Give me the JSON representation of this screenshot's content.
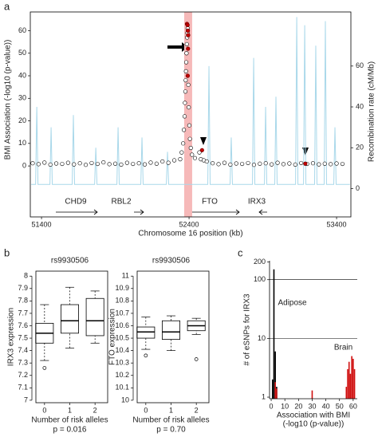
{
  "chart_data": [
    {
      "type": "locus",
      "panel": "a",
      "ylabel": "BMI Association (-log10 (p-value))",
      "y2label": "Recombination rate (cM/Mb)",
      "xlabel": "Chromosome 16 position (kb)",
      "xlim": [
        51324,
        53497
      ],
      "xticks": [
        51400,
        52400,
        53400
      ],
      "ylim": [
        -22.6,
        68.3
      ],
      "yticks": [
        0,
        10,
        20,
        30,
        40,
        50,
        60
      ],
      "y2lim": [
        -13.9,
        86.5
      ],
      "y2ticks": [
        0,
        20,
        40,
        60
      ],
      "highlight": [
        52367,
        52421
      ],
      "highlight_color": "#f6b9b9",
      "genes": [
        "CHD9",
        "RBL2",
        "FTO",
        "IRX3"
      ],
      "series": [
        {
          "color": "#ffffff",
          "x": [
            51340,
            51380,
            51420,
            51460,
            51500,
            51540,
            51580,
            51620,
            51660,
            51700,
            51740,
            51780,
            51820,
            51860,
            51900,
            51940,
            51980,
            52020,
            52060,
            52100,
            52140,
            52180,
            52220,
            52260,
            52300,
            52340,
            52350,
            52360,
            52365,
            52370,
            52372,
            52375,
            52377,
            52379,
            52381,
            52383,
            52385,
            52387,
            52389,
            52391,
            52395,
            52398,
            52402,
            52406,
            52412,
            52420,
            52440,
            52470,
            52480,
            52500,
            52520,
            52560,
            52600,
            52640,
            52680,
            52720,
            52760,
            52800,
            52840,
            52880,
            52920,
            52960,
            53000,
            53040,
            53080,
            53120,
            53160,
            53200,
            53240,
            53280,
            53320,
            53360,
            53400,
            53440
          ],
          "values": [
            1.2,
            0.8,
            1.5,
            0.6,
            1.1,
            0.9,
            1.4,
            0.7,
            1.2,
            0.5,
            1.3,
            0.9,
            1.6,
            0.8,
            1.0,
            0.6,
            1.4,
            0.9,
            1.2,
            0.7,
            1.5,
            1.0,
            2.0,
            1.4,
            2.5,
            3,
            6,
            10,
            16,
            22,
            28,
            33,
            38,
            42,
            46,
            50,
            54,
            57,
            59,
            61,
            36,
            26,
            18,
            12,
            8,
            5,
            3.5,
            6,
            3,
            2.5,
            2.0,
            1.2,
            0.8,
            1.4,
            0.6,
            1.1,
            0.9,
            1.3,
            0.5,
            1.0,
            1.2,
            0.7,
            1.4,
            0.8,
            1.1,
            0.6,
            1.3,
            0.9,
            1.2,
            0.7,
            1.0,
            0.8,
            1.1,
            0.9
          ]
        },
        {
          "color": "#c00000",
          "x": [
            52386,
            52390,
            52392,
            52394,
            52393,
            52391,
            52488,
            53188
          ],
          "values": [
            63,
            62.5,
            60,
            58,
            52,
            40,
            7,
            1
          ]
        },
        {
          "color": "#a9d8ea",
          "axis": "y2",
          "kind": "line",
          "x": [
            51330,
            51360,
            51368,
            51376,
            51457,
            51465,
            51473,
            51608,
            51616,
            51624,
            51760,
            51768,
            51776,
            51911,
            51919,
            51927,
            52073,
            52081,
            52089,
            52246,
            52254,
            52262,
            52527,
            52535,
            52543,
            52678,
            52686,
            52694,
            52830,
            52838,
            52846,
            52911,
            52919,
            52927,
            52981,
            52989,
            52997,
            53122,
            53130,
            53138,
            53176,
            53184,
            53192,
            53251,
            53259,
            53267,
            53316,
            53324,
            53332,
            53381,
            53389,
            53397,
            53490
          ],
          "values": [
            2,
            2,
            40,
            2,
            2,
            30,
            2,
            2,
            36,
            2,
            2,
            20,
            2,
            2,
            30,
            2,
            2,
            25,
            2,
            2,
            18,
            2,
            2,
            60,
            2,
            2,
            25,
            2,
            2,
            64,
            2,
            2,
            40,
            2,
            2,
            45,
            2,
            2,
            84,
            2,
            2,
            80,
            2,
            2,
            70,
            2,
            2,
            82,
            2,
            2,
            30,
            2,
            2
          ]
        }
      ]
    },
    {
      "type": "box",
      "panel": "b",
      "title": "rs9930506",
      "ylabel": "IRX3 expression",
      "xlabel": "Number of risk alleles",
      "note": "p = 0.016",
      "categories": [
        "0",
        "1",
        "2"
      ],
      "ylim": [
        6.98,
        8.04
      ],
      "yticks": [
        7,
        7.1,
        7.2,
        7.3,
        7.4,
        7.5,
        7.6,
        7.7,
        7.8,
        7.9,
        8
      ],
      "boxes": [
        {
          "whisker_low": 7.32,
          "q1": 7.46,
          "median": 7.54,
          "q3": 7.62,
          "whisker_high": 7.77,
          "outliers": [
            7.26
          ]
        },
        {
          "whisker_low": 7.42,
          "q1": 7.54,
          "median": 7.64,
          "q3": 7.77,
          "whisker_high": 7.91,
          "outliers": []
        },
        {
          "whisker_low": 7.46,
          "q1": 7.52,
          "median": 7.64,
          "q3": 7.82,
          "whisker_high": 7.88,
          "outliers": []
        }
      ]
    },
    {
      "type": "box",
      "title": "rs9930506",
      "ylabel": "FTO expression",
      "xlabel": "Number of risk alleles",
      "note": "p = 0.70",
      "categories": [
        "0",
        "1",
        "2"
      ],
      "ylim": [
        9.98,
        11.04
      ],
      "yticks": [
        10,
        10.1,
        10.2,
        10.3,
        10.4,
        10.5,
        10.6,
        10.7,
        10.8,
        10.9,
        11
      ],
      "boxes": [
        {
          "whisker_low": 10.41,
          "q1": 10.5,
          "median": 10.55,
          "q3": 10.59,
          "whisker_high": 10.67,
          "outliers": [
            10.36
          ]
        },
        {
          "whisker_low": 10.4,
          "q1": 10.49,
          "median": 10.55,
          "q3": 10.64,
          "whisker_high": 10.68,
          "outliers": []
        },
        {
          "whisker_low": 10.53,
          "q1": 10.56,
          "median": 10.6,
          "q3": 10.64,
          "whisker_high": 10.66,
          "outliers": [
            10.33
          ]
        }
      ]
    },
    {
      "type": "spikes",
      "panel": "c",
      "ylabel": "# of eSNPs for IRX3",
      "xlabel": [
        "Association with BMI",
        "(-log10 (p-value))"
      ],
      "log_y": true,
      "ylim": [
        0.94,
        210
      ],
      "yticks": [
        1,
        10,
        100,
        200
      ],
      "grid_y": [
        10,
        100
      ],
      "xlim": [
        -1.2,
        63
      ],
      "xticks": [
        0,
        10,
        20,
        30,
        40,
        50,
        60
      ],
      "series": [
        {
          "name": "Adipose",
          "color": "#000000",
          "x": [
            1,
            2,
            3,
            4
          ],
          "values": [
            2,
            150,
            6,
            1.5
          ]
        },
        {
          "name": "Brain",
          "color": "#d01010",
          "x": [
            3,
            4,
            30,
            55,
            56,
            57,
            58,
            59,
            60,
            61
          ],
          "values": [
            1.8,
            1.4,
            1.3,
            1.5,
            3,
            4,
            2.5,
            5,
            4.5,
            3
          ]
        }
      ]
    }
  ]
}
